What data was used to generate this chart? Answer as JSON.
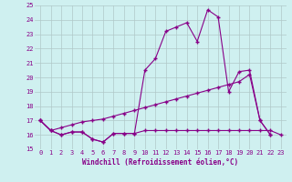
{
  "xlabel": "Windchill (Refroidissement éolien,°C)",
  "background_color": "#cff0f0",
  "grid_color": "#b0c8c8",
  "line_color": "#880088",
  "xlim": [
    -0.5,
    23.5
  ],
  "ylim": [
    15,
    25
  ],
  "yticks": [
    15,
    16,
    17,
    18,
    19,
    20,
    21,
    22,
    23,
    24,
    25
  ],
  "xticks": [
    0,
    1,
    2,
    3,
    4,
    5,
    6,
    7,
    8,
    9,
    10,
    11,
    12,
    13,
    14,
    15,
    16,
    17,
    18,
    19,
    20,
    21,
    22,
    23
  ],
  "line1_x": [
    0,
    1,
    2,
    3,
    4,
    5,
    6,
    7,
    8,
    9,
    10,
    11,
    12,
    13,
    14,
    15,
    16,
    17,
    18,
    19,
    20,
    21,
    22,
    23
  ],
  "line1_y": [
    17.0,
    16.3,
    16.0,
    16.2,
    16.2,
    15.7,
    15.5,
    16.1,
    16.1,
    16.1,
    16.3,
    16.3,
    16.3,
    16.3,
    16.3,
    16.3,
    16.3,
    16.3,
    16.3,
    16.3,
    16.3,
    16.3,
    16.3,
    16.0
  ],
  "line2_x": [
    0,
    1,
    2,
    3,
    4,
    5,
    6,
    7,
    8,
    9,
    10,
    11,
    12,
    13,
    14,
    15,
    16,
    17,
    18,
    19,
    20,
    21,
    22
  ],
  "line2_y": [
    17.0,
    16.3,
    16.0,
    16.2,
    16.2,
    15.7,
    15.5,
    16.1,
    16.1,
    16.1,
    20.5,
    21.3,
    23.2,
    23.5,
    23.8,
    22.5,
    24.7,
    24.2,
    19.0,
    20.4,
    20.5,
    17.0,
    16.0
  ],
  "line3_x": [
    0,
    1,
    2,
    3,
    4,
    5,
    6,
    7,
    8,
    9,
    10,
    11,
    12,
    13,
    14,
    15,
    16,
    17,
    18,
    19,
    20,
    21,
    22
  ],
  "line3_y": [
    17.0,
    16.3,
    16.5,
    16.7,
    16.9,
    17.0,
    17.1,
    17.3,
    17.5,
    17.7,
    17.9,
    18.1,
    18.3,
    18.5,
    18.7,
    18.9,
    19.1,
    19.3,
    19.5,
    19.7,
    20.2,
    17.0,
    16.0
  ]
}
